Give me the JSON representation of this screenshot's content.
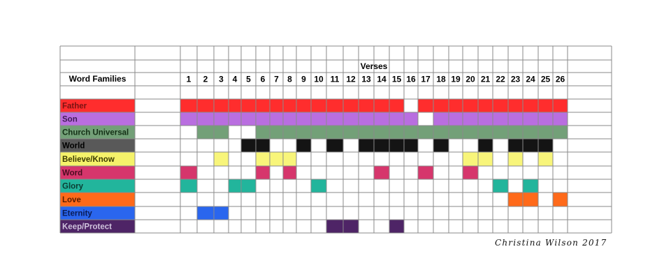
{
  "chart_data": {
    "type": "heatmap",
    "row_header": "Word Families",
    "column_title": "Verses",
    "verses": [
      "1",
      "2",
      "3",
      "4",
      "5",
      "6",
      "7",
      "8",
      "9",
      "10",
      "11",
      "12",
      "13",
      "14",
      "15",
      "16",
      "17",
      "18",
      "19",
      "20",
      "21",
      "22",
      "23",
      "24",
      "25",
      "26"
    ],
    "families": [
      {
        "name": "Father",
        "color": "#ff2d2d",
        "text_color": "#7a1212",
        "verses": [
          1,
          2,
          3,
          4,
          5,
          6,
          7,
          8,
          9,
          10,
          11,
          12,
          13,
          14,
          15,
          17,
          18,
          19,
          20,
          21,
          22,
          23,
          24,
          25,
          26
        ]
      },
      {
        "name": "Son",
        "color": "#b96ee0",
        "text_color": "#3f1d55",
        "verses": [
          1,
          2,
          3,
          4,
          5,
          6,
          7,
          8,
          9,
          10,
          11,
          12,
          13,
          14,
          15,
          16,
          18,
          19,
          20,
          21,
          22,
          23,
          24,
          25,
          26
        ]
      },
      {
        "name": "Church Universal",
        "color": "#73a078",
        "text_color": "#143016",
        "verses": [
          2,
          3,
          6,
          7,
          8,
          9,
          10,
          11,
          12,
          13,
          14,
          15,
          16,
          17,
          18,
          19,
          20,
          21,
          22,
          23,
          24,
          25,
          26
        ]
      },
      {
        "name": "World",
        "color": "#595959",
        "cell_color": "#141414",
        "text_color": "#000000",
        "verses": [
          5,
          6,
          9,
          11,
          13,
          14,
          15,
          16,
          18,
          21,
          23,
          24,
          25
        ]
      },
      {
        "name": "Believe/Know",
        "color": "#f5f26a",
        "cell_color": "#f8f57a",
        "text_color": "#3a3a00",
        "verses": [
          3,
          6,
          7,
          8,
          20,
          21,
          23,
          25
        ]
      },
      {
        "name": "Word",
        "color": "#d6366c",
        "text_color": "#4a0c20",
        "verses": [
          1,
          6,
          8,
          14,
          17,
          20
        ]
      },
      {
        "name": "Glory",
        "color": "#22b59c",
        "text_color": "#0b3d33",
        "verses": [
          1,
          4,
          5,
          10,
          22,
          24
        ]
      },
      {
        "name": "Love",
        "color": "#ff6a1a",
        "text_color": "#5a1d00",
        "verses": [
          23,
          24,
          26
        ]
      },
      {
        "name": "Eternity",
        "color": "#2a66ee",
        "text_color": "#0a1c55",
        "verses": [
          2,
          3
        ]
      },
      {
        "name": "Keep/Protect",
        "color": "#4e2466",
        "text_color": "#cfc3dc",
        "verses": [
          11,
          12,
          15
        ]
      }
    ]
  },
  "signature": "Christina Wilson 2017"
}
